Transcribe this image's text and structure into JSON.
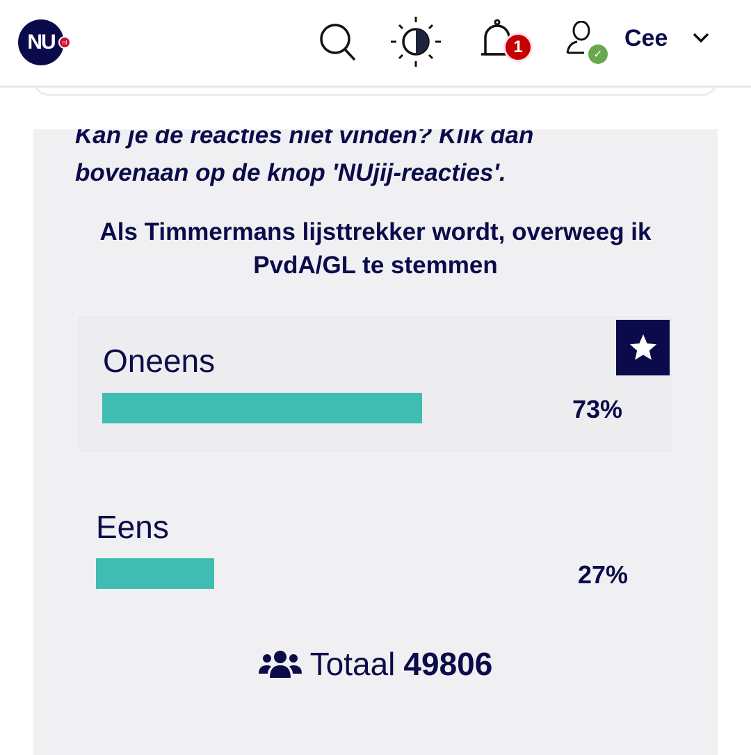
{
  "header": {
    "logo": "NU",
    "logo_suffix": "nl",
    "notification_count": "1",
    "user_name": "Cee",
    "icons": [
      "search-icon",
      "contrast-icon",
      "bell-icon",
      "user-icon",
      "chevron-down-icon"
    ]
  },
  "note": "Kan je de reacties niet vinden? Klik dan bovenaan op de knop 'NUjij-reacties'.",
  "poll": {
    "question": "Als Timmermans lijsttrekker wordt, overweeg ik PvdA/GL te stemmen",
    "options": [
      {
        "label": "Oneens",
        "percent_label": "73%",
        "percent": 73,
        "selected": true
      },
      {
        "label": "Eens",
        "percent_label": "27%",
        "percent": 27,
        "selected": false
      }
    ],
    "total_label": "Totaal",
    "total": "49806"
  },
  "colors": {
    "navy": "#0b0b4b",
    "bar": "#40bcb2",
    "badge": "#c40000",
    "check": "#6aa84f"
  }
}
